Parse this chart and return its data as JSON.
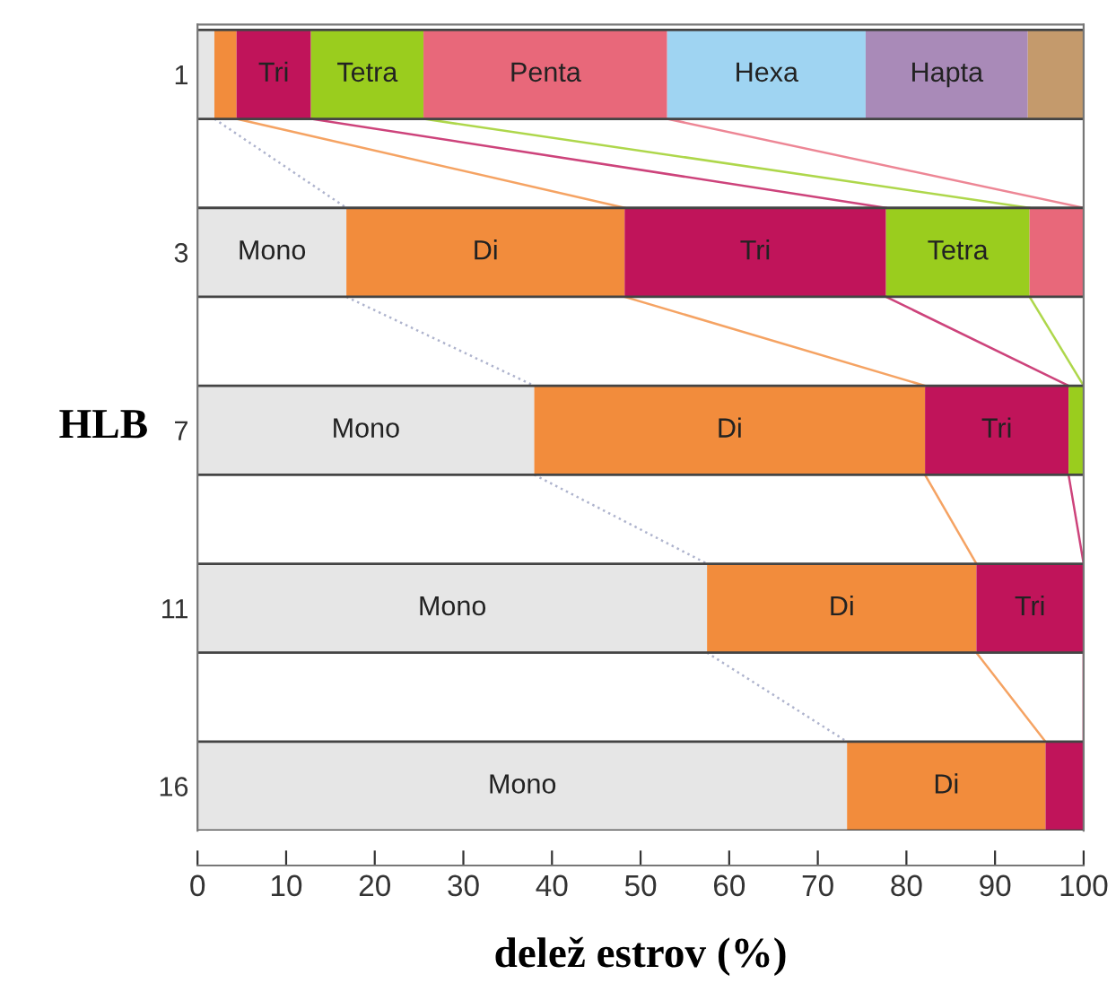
{
  "chart_data": {
    "type": "bar",
    "orientation": "horizontal",
    "stacked": true,
    "categories": [
      "1",
      "3",
      "7",
      "11",
      "16"
    ],
    "xlabel": "delež estrov (%)",
    "ylabel": "HLB",
    "xlim": [
      0,
      100
    ],
    "xticks": [
      0,
      10,
      20,
      30,
      40,
      50,
      60,
      70,
      80,
      90,
      100
    ],
    "grid": false,
    "legend": false,
    "series": [
      {
        "color": "#e6e6e6",
        "values": [
          1.9,
          16.8,
          38,
          57.5,
          73.3
        ],
        "value_labels": [
          null,
          "Mono",
          "Mono",
          "Mono",
          "Mono"
        ]
      },
      {
        "color": "#f28c3c",
        "values": [
          2.5,
          31.4,
          44.1,
          30.4,
          22.4
        ],
        "value_labels": [
          null,
          "Di",
          "Di",
          "Di",
          "Di"
        ]
      },
      {
        "color": "#c0145a",
        "values": [
          8.4,
          29.5,
          16.2,
          12.1,
          4.3
        ],
        "value_labels": [
          "Tri",
          "Tri",
          "Tri",
          "Tri",
          null
        ]
      },
      {
        "color": "#9acd1e",
        "values": [
          12.7,
          16.2,
          1.7,
          null,
          null
        ],
        "value_labels": [
          "Tetra",
          "Tetra",
          null,
          null,
          null
        ]
      },
      {
        "color": "#e8687a",
        "values": [
          27.5,
          6.1,
          null,
          null,
          null
        ],
        "value_labels": [
          "Penta",
          null,
          null,
          null,
          null
        ]
      },
      {
        "color": "#9fd4f2",
        "values": [
          22.4,
          null,
          null,
          null,
          null
        ],
        "value_labels": [
          "Hexa",
          null,
          null,
          null,
          null
        ]
      },
      {
        "color": "#a98ab8",
        "values": [
          18.3,
          null,
          null,
          null,
          null
        ],
        "value_labels": [
          "Hapta",
          null,
          null,
          null,
          null
        ]
      },
      {
        "color": "#c49a6c",
        "values": [
          6.3,
          null,
          null,
          null,
          null
        ]
      }
    ]
  }
}
